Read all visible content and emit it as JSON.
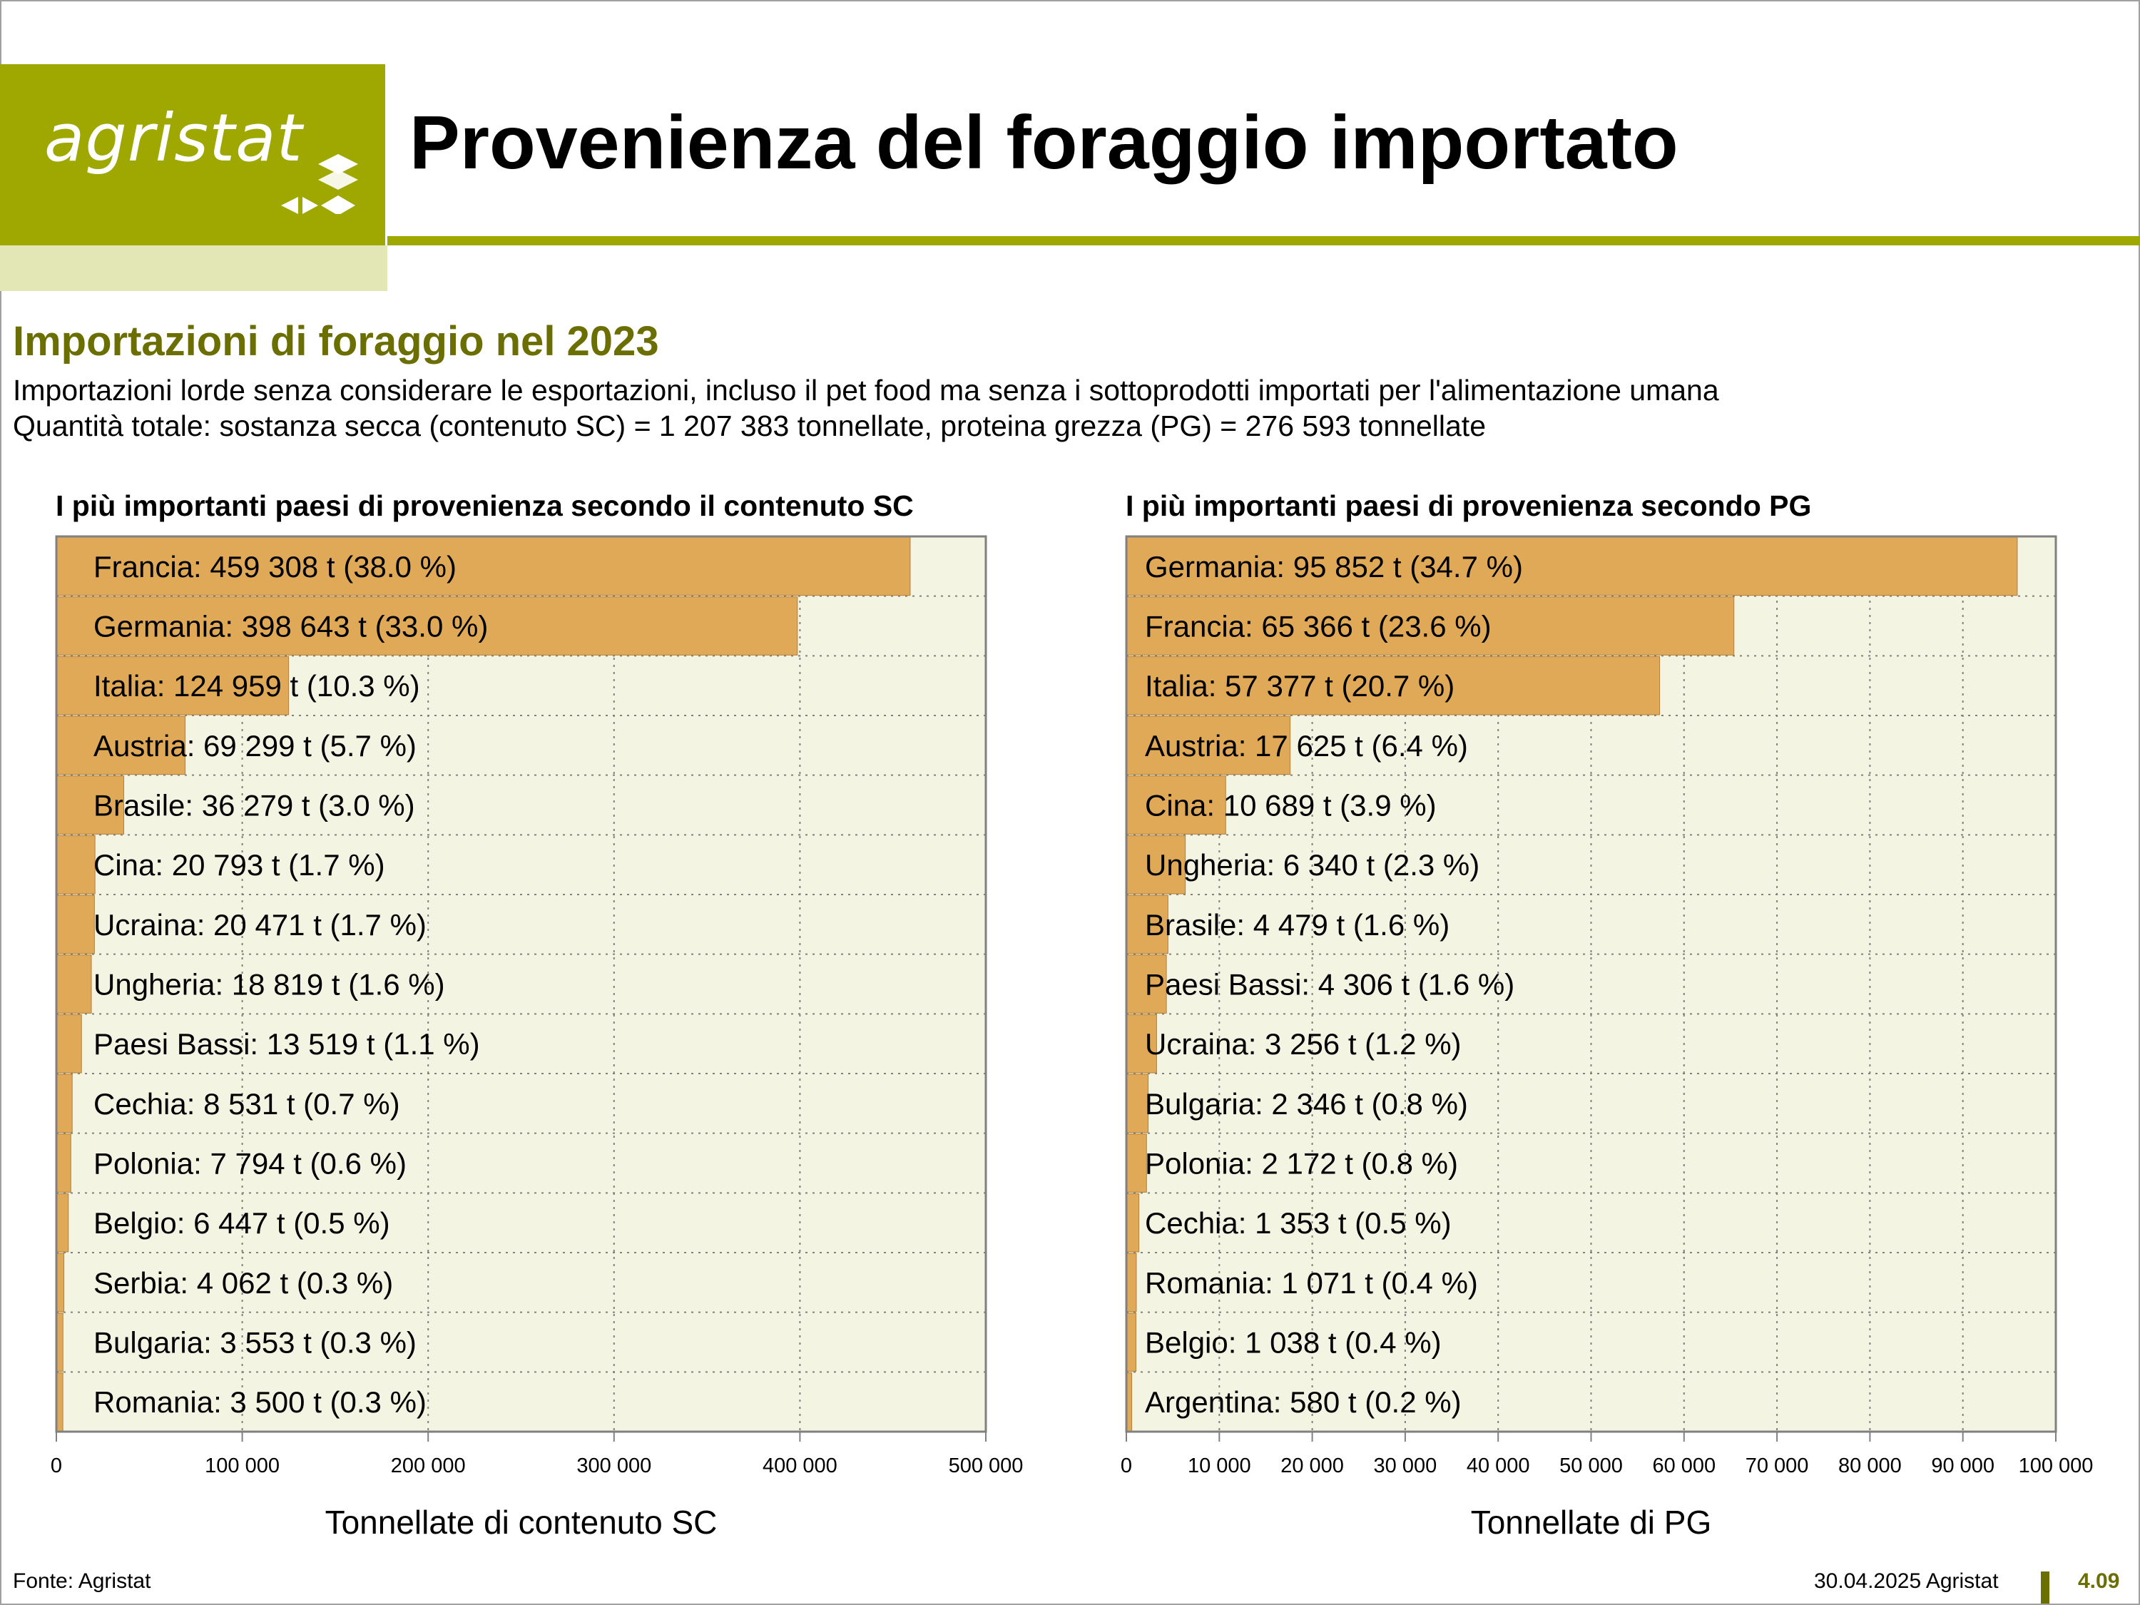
{
  "header": {
    "logo_text": "agristat",
    "title": "Provenienza del foraggio importato"
  },
  "section": {
    "subtitle": "Importazioni di foraggio nel 2023",
    "desc1": "Importazioni lorde senza considerare le esportazioni, incluso il pet food ma senza i sottoprodotti importati per l'alimentazione umana",
    "desc2": "Quantità totale: sostanza secca (contenuto SC) = 1 207 383 tonnellate, proteina grezza (PG) = 276 593 tonnellate"
  },
  "colors": {
    "bar": "#e0a957",
    "plot_bg": "#f4f4e2",
    "accent": "#9fa800",
    "accent_dark": "#6b6e00"
  },
  "chart_data": [
    {
      "type": "bar",
      "orientation": "horizontal",
      "title": "I più importanti paesi di provenienza secondo il contenuto SC",
      "xlabel": "Tonnellate di contenuto SC",
      "xlim": [
        0,
        500000
      ],
      "xticks": [
        0,
        100000,
        200000,
        300000,
        400000,
        500000
      ],
      "xtick_labels": [
        "0",
        "100 000",
        "200 000",
        "300 000",
        "400 000",
        "500 000"
      ],
      "grid": true,
      "categories": [
        "Francia",
        "Germania",
        "Italia",
        "Austria",
        "Brasile",
        "Cina",
        "Ucraina",
        "Ungheria",
        "Paesi Bassi",
        "Cechia",
        "Polonia",
        "Belgio",
        "Serbia",
        "Bulgaria",
        "Romania"
      ],
      "values": [
        459308,
        398643,
        124959,
        69299,
        36279,
        20793,
        20471,
        18819,
        13519,
        8531,
        7794,
        6447,
        4062,
        3553,
        3500
      ],
      "labels": [
        "Francia: 459 308 t (38.0 %)",
        "Germania: 398 643 t (33.0 %)",
        "Italia: 124 959 t (10.3 %)",
        "Austria: 69 299 t (5.7 %)",
        "Brasile: 36 279 t (3.0 %)",
        "Cina: 20 793 t (1.7 %)",
        "Ucraina: 20 471 t (1.7 %)",
        "Ungheria: 18 819 t (1.6 %)",
        "Paesi Bassi: 13 519 t (1.1 %)",
        "Cechia: 8 531 t (0.7 %)",
        "Polonia: 7 794 t (0.6 %)",
        "Belgio: 6 447 t (0.5 %)",
        "Serbia: 4 062 t (0.3 %)",
        "Bulgaria: 3 553 t (0.3 %)",
        "Romania: 3 500 t (0.3 %)"
      ]
    },
    {
      "type": "bar",
      "orientation": "horizontal",
      "title": "I più importanti paesi di provenienza secondo PG",
      "xlabel": "Tonnellate di PG",
      "xlim": [
        0,
        100000
      ],
      "xticks": [
        0,
        10000,
        20000,
        30000,
        40000,
        50000,
        60000,
        70000,
        80000,
        90000,
        100000
      ],
      "xtick_labels": [
        "0",
        "10 000",
        "20 000",
        "30 000",
        "40 000",
        "50 000",
        "60 000",
        "70 000",
        "80 000",
        "90 000",
        "100 000"
      ],
      "grid": true,
      "categories": [
        "Germania",
        "Francia",
        "Italia",
        "Austria",
        "Cina",
        "Ungheria",
        "Brasile",
        "Paesi Bassi",
        "Ucraina",
        "Bulgaria",
        "Polonia",
        "Cechia",
        "Romania",
        "Belgio",
        "Argentina"
      ],
      "values": [
        95852,
        65366,
        57377,
        17625,
        10689,
        6340,
        4479,
        4306,
        3256,
        2346,
        2172,
        1353,
        1071,
        1038,
        580
      ],
      "labels": [
        "Germania: 95 852 t (34.7 %)",
        "Francia: 65 366 t (23.6 %)",
        "Italia: 57 377 t (20.7 %)",
        "Austria: 17 625 t (6.4 %)",
        "Cina: 10 689 t (3.9 %)",
        "Ungheria: 6 340 t (2.3 %)",
        "Brasile: 4 479 t (1.6 %)",
        "Paesi Bassi: 4 306 t (1.6 %)",
        "Ucraina: 3 256 t (1.2 %)",
        "Bulgaria: 2 346 t (0.8 %)",
        "Polonia: 2 172 t (0.8 %)",
        "Cechia: 1 353 t (0.5 %)",
        "Romania: 1 071 t (0.4 %)",
        "Belgio: 1 038 t (0.4 %)",
        "Argentina: 580 t (0.2 %)"
      ]
    }
  ],
  "footer": {
    "source": "Fonte: Agristat",
    "date": "30.04.2025 Agristat",
    "page": "4.09"
  }
}
